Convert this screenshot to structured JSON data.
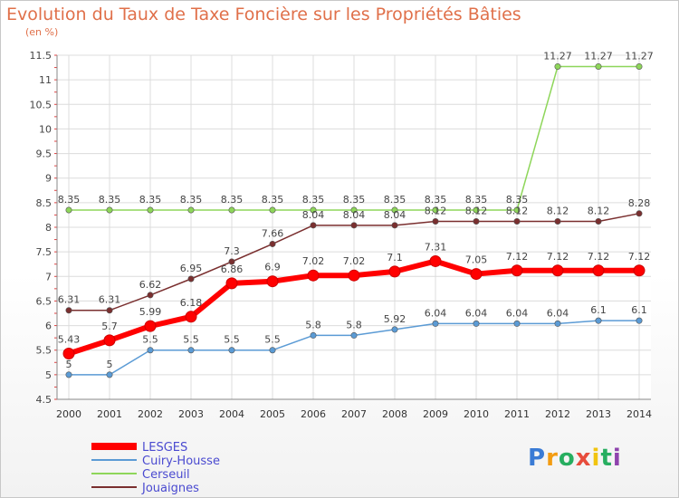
{
  "title": "Evolution du Taux de Taxe Foncière sur les Propriétés Bâties",
  "subtitle": "(en %)",
  "logo": {
    "text": "Proxiti",
    "letter_colors": [
      "#3a7bd5",
      "#f39c12",
      "#27ae60",
      "#e74c3c",
      "#f1c40f",
      "#27ae60",
      "#8e44ad"
    ]
  },
  "chart_data": {
    "type": "line",
    "x": [
      2000,
      2001,
      2002,
      2003,
      2004,
      2005,
      2006,
      2007,
      2008,
      2009,
      2010,
      2011,
      2012,
      2013,
      2014
    ],
    "ylim": [
      4.5,
      11.5
    ],
    "yticks": [
      "4.5",
      "5",
      "5.5",
      "6",
      "6.5",
      "7",
      "7.5",
      "8",
      "8.5",
      "9",
      "9.5",
      "10",
      "10.5",
      "11",
      "11.5"
    ],
    "grid": true,
    "legend_position": "bottom-left",
    "series": [
      {
        "name": "LESGES",
        "color": "#ff0000",
        "values": [
          5.43,
          5.7,
          5.99,
          6.18,
          6.86,
          6.9,
          7.02,
          7.02,
          7.1,
          7.31,
          7.05,
          7.12,
          7.12,
          7.12,
          7.12
        ],
        "labels": [
          "5.43",
          "5.7",
          "5.99",
          "6.18",
          "6.86",
          "6.9",
          "7.02",
          "7.02",
          "7.1",
          "7.31",
          "7.05",
          "7.12",
          "7.12",
          "7.12",
          "7.12"
        ]
      },
      {
        "name": "Cuiry-Housse",
        "color": "#5b9bd5",
        "values": [
          5,
          5,
          5.5,
          5.5,
          5.5,
          5.5,
          5.8,
          5.8,
          5.92,
          6.04,
          6.04,
          6.04,
          6.04,
          6.1,
          6.1
        ],
        "labels": [
          "5",
          "5",
          "5.5",
          "5.5",
          "5.5",
          "5.5",
          "5.8",
          "5.8",
          "5.92",
          "6.04",
          "6.04",
          "6.04",
          "6.04",
          "6.1",
          "6.1"
        ]
      },
      {
        "name": "Cerseuil",
        "color": "#8ed65a",
        "values": [
          8.35,
          8.35,
          8.35,
          8.35,
          8.35,
          8.35,
          8.35,
          8.35,
          8.35,
          8.35,
          8.35,
          8.35,
          11.27,
          11.27,
          11.27
        ],
        "labels": [
          "8.35",
          "8.35",
          "8.35",
          "8.35",
          "8.35",
          "8.35",
          "8.35",
          "8.35",
          "8.35",
          "8.35",
          "8.35",
          "8.35",
          "11.27",
          "11.27",
          "11.27"
        ]
      },
      {
        "name": "Jouaignes",
        "color": "#7a2f2f",
        "values": [
          6.31,
          6.31,
          6.62,
          6.95,
          7.3,
          7.66,
          8.04,
          8.04,
          8.04,
          8.12,
          8.12,
          8.12,
          8.12,
          8.12,
          8.28
        ],
        "labels": [
          "6.31",
          "6.31",
          "6.62",
          "6.95",
          "7.3",
          "7.66",
          "8.04",
          "8.04",
          "8.04",
          "8.12",
          "8.12",
          "8.12",
          "8.12",
          "8.12",
          "8.28"
        ]
      }
    ]
  }
}
